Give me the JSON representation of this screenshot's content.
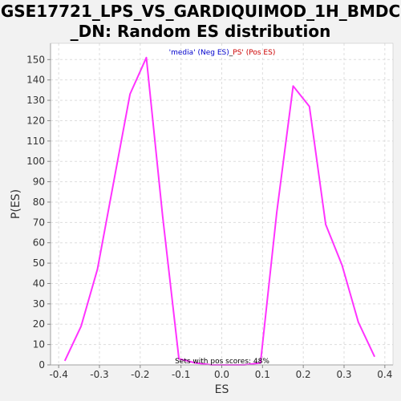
{
  "chart_data": {
    "type": "line",
    "title_line1": "GSE17721_LPS_VS_GARDIQUIMOD_1H_BMDC",
    "title_line2": "_DN: Random ES distribution",
    "xlabel": "ES",
    "ylabel": "P(ES)",
    "xlim": [
      -0.42,
      0.42
    ],
    "ylim": [
      0,
      158
    ],
    "xticks": [
      -0.4,
      -0.3,
      -0.2,
      -0.1,
      0.0,
      0.1,
      0.2,
      0.3,
      0.4
    ],
    "xtick_labels": [
      "-0.4",
      "-0.3",
      "-0.2",
      "-0.1",
      "0.0",
      "0.1",
      "0.2",
      "0.3",
      "0.4"
    ],
    "yticks": [
      0,
      10,
      20,
      30,
      40,
      50,
      60,
      70,
      80,
      90,
      100,
      110,
      120,
      130,
      140,
      150
    ],
    "ytick_labels": [
      "0",
      "10",
      "20",
      "30",
      "40",
      "50",
      "60",
      "70",
      "80",
      "90",
      "100",
      "110",
      "120",
      "130",
      "140",
      "150"
    ],
    "grid": true,
    "legend": {
      "placement": "top-center",
      "neg_label": "'media' (Neg ES)",
      "separator": "_",
      "pos_label": "PS' (Pos ES)",
      "neg_color": "#0000cc",
      "pos_color": "#cc0000"
    },
    "annotation": "Sets with pos scores: 48%",
    "series": [
      {
        "color": "#ff33ff",
        "x": [
          -0.385,
          -0.345,
          -0.305,
          -0.265,
          -0.225,
          -0.185,
          -0.145,
          -0.105,
          -0.065,
          -0.025,
          0.015,
          0.055,
          0.095,
          0.135,
          0.175,
          0.215,
          0.255,
          0.295,
          0.335,
          0.375
        ],
        "y": [
          2,
          19,
          47,
          90,
          133,
          151,
          73,
          3,
          1,
          0,
          0,
          0,
          1,
          75,
          137,
          127,
          69,
          49,
          21,
          4
        ]
      }
    ]
  }
}
